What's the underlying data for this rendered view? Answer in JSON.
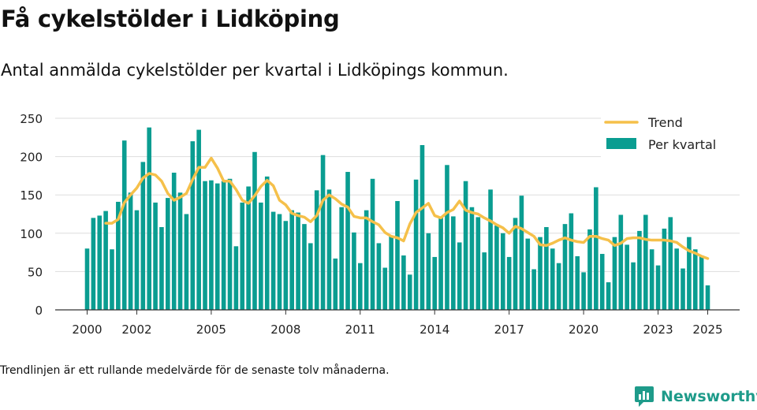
{
  "header": {
    "title": "Få cykelstölder i Lidköping",
    "subtitle": "Antal anmälda cykelstölder per kvartal i Lidköpings kommun."
  },
  "footnote": "Trendlinjen är ett rullande medelvärde för de senaste tolv månaderna.",
  "brand": {
    "name": "Newsworthy",
    "icon": "newsworthy-logo-icon"
  },
  "colors": {
    "bars": "#0a9d91",
    "trend": "#f5c04a",
    "grid": "#dddddd",
    "text": "#222222"
  },
  "chart_data": {
    "type": "bar",
    "x_start_year": 2000,
    "x_ticks": [
      "2000",
      "2002",
      "2005",
      "2008",
      "2011",
      "2014",
      "2017",
      "2020",
      "2023",
      "2025"
    ],
    "y_ticks": [
      "0",
      "50",
      "100",
      "150",
      "200",
      "250"
    ],
    "ylim": [
      0,
      250
    ],
    "grid": true,
    "legend_position": "top-right",
    "series": [
      {
        "name": "Per kvartal",
        "type": "bar",
        "values": [
          80,
          120,
          123,
          129,
          79,
          141,
          221,
          153,
          130,
          193,
          238,
          140,
          108,
          146,
          179,
          153,
          125,
          220,
          235,
          168,
          169,
          165,
          168,
          171,
          83,
          140,
          161,
          206,
          140,
          174,
          128,
          125,
          116,
          130,
          127,
          112,
          87,
          156,
          202,
          157,
          67,
          134,
          180,
          101,
          61,
          130,
          171,
          87,
          55,
          97,
          142,
          71,
          46,
          170,
          215,
          100,
          69,
          121,
          189,
          122,
          88,
          168,
          134,
          121,
          75,
          157,
          110,
          100,
          69,
          120,
          149,
          93,
          53,
          95,
          108,
          80,
          61,
          112,
          126,
          70,
          49,
          105,
          160,
          73,
          36,
          95,
          124,
          85,
          62,
          103,
          124,
          79,
          58,
          106,
          121,
          80,
          54,
          95,
          79,
          71,
          32
        ]
      },
      {
        "name": "Trend",
        "type": "line",
        "values": [
          null,
          null,
          null,
          113,
          113,
          118,
          140,
          150,
          159,
          172,
          178,
          176,
          168,
          152,
          143,
          147,
          152,
          170,
          186,
          186,
          198,
          185,
          168,
          168,
          157,
          143,
          139,
          149,
          161,
          169,
          162,
          143,
          137,
          126,
          123,
          121,
          115,
          123,
          143,
          150,
          145,
          138,
          134,
          122,
          120,
          120,
          115,
          111,
          101,
          96,
          94,
          90,
          112,
          127,
          133,
          139,
          123,
          120,
          127,
          131,
          142,
          130,
          127,
          125,
          120,
          116,
          111,
          107,
          100,
          109,
          106,
          101,
          96,
          85,
          84,
          87,
          91,
          94,
          91,
          89,
          88,
          96,
          96,
          93,
          91,
          84,
          87,
          93,
          94,
          94,
          92,
          91,
          91,
          91,
          90,
          88,
          82,
          77,
          74,
          70,
          67
        ]
      }
    ]
  }
}
